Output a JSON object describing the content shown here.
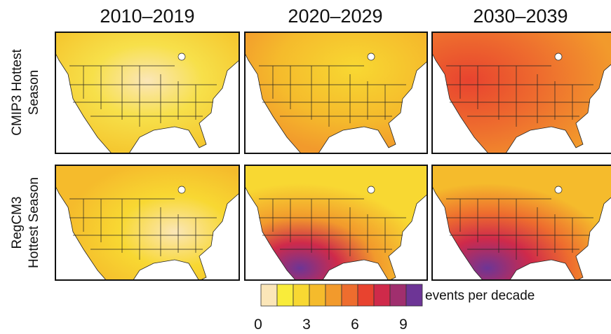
{
  "columns": [
    "2010–2019",
    "2020–2029",
    "2030–2039"
  ],
  "rows": [
    {
      "lines": [
        "CMIP3 Hottest",
        "Season"
      ]
    },
    {
      "lines": [
        "RegCM3",
        "Hottest Season"
      ]
    }
  ],
  "legend": {
    "label": "events per decade",
    "ticks": [
      0,
      3,
      6,
      9
    ],
    "colors": [
      "#fbe6b8",
      "#f9ec3a",
      "#f8d832",
      "#f5bb2c",
      "#f29a2c",
      "#ee6d2e",
      "#e8432f",
      "#cf2a4a",
      "#a02f6e",
      "#6d3596"
    ]
  }
}
